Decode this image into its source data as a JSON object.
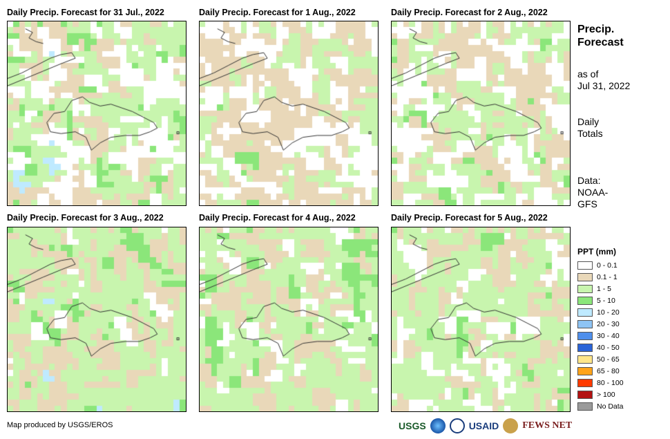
{
  "panels": [
    {
      "title": "Daily Precip. Forecast for 31 Jul., 2022",
      "seed": 3,
      "weights": [
        0.22,
        0.28,
        0.38,
        0.1,
        0.02
      ]
    },
    {
      "title": "Daily Precip. Forecast for 1 Aug., 2022",
      "seed": 11,
      "weights": [
        0.38,
        0.4,
        0.2,
        0.02,
        0.0
      ]
    },
    {
      "title": "Daily Precip. Forecast for 2 Aug., 2022",
      "seed": 17,
      "weights": [
        0.22,
        0.33,
        0.4,
        0.05,
        0.0
      ]
    },
    {
      "title": "Daily Precip. Forecast for 3 Aug., 2022",
      "seed": 23,
      "weights": [
        0.05,
        0.3,
        0.57,
        0.07,
        0.01
      ]
    },
    {
      "title": "Daily Precip. Forecast for 4 Aug., 2022",
      "seed": 31,
      "weights": [
        0.12,
        0.25,
        0.57,
        0.06,
        0.0
      ]
    },
    {
      "title": "Daily Precip. Forecast for 5 Aug., 2022",
      "seed": 41,
      "weights": [
        0.15,
        0.25,
        0.54,
        0.06,
        0.0
      ]
    }
  ],
  "side": {
    "title_line1": "Precip.",
    "title_line2": "Forecast",
    "asof_line1": "as of",
    "asof_line2": "Jul 31, 2022",
    "totals_line1": "Daily",
    "totals_line2": "Totals",
    "data_line1": "Data:",
    "data_line2": "NOAA-",
    "data_line3": "GFS"
  },
  "legend": {
    "title": "PPT (mm)",
    "items": [
      {
        "label": "0 - 0.1",
        "color": "#ffffff"
      },
      {
        "label": "0.1 - 1",
        "color": "#e9d8b9"
      },
      {
        "label": "1 - 5",
        "color": "#c8f5ae"
      },
      {
        "label": "5 - 10",
        "color": "#8be67a"
      },
      {
        "label": "10 - 20",
        "color": "#bfeaff"
      },
      {
        "label": "20 - 30",
        "color": "#8ec4f4"
      },
      {
        "label": "30 - 40",
        "color": "#4f8fec"
      },
      {
        "label": "40 - 50",
        "color": "#2a64d8"
      },
      {
        "label": "50 - 65",
        "color": "#ffe68a"
      },
      {
        "label": "65 - 80",
        "color": "#ffa31a"
      },
      {
        "label": "80 - 100",
        "color": "#ff3a00"
      },
      {
        "label": "> 100",
        "color": "#b31212"
      },
      {
        "label": "No Data",
        "color": "#9a9a9a"
      }
    ]
  },
  "credit": "Map produced by USGS/EROS",
  "logos": {
    "usgs": "USGS",
    "usaid": "USAID",
    "fewsnet": "FEWS NET"
  }
}
